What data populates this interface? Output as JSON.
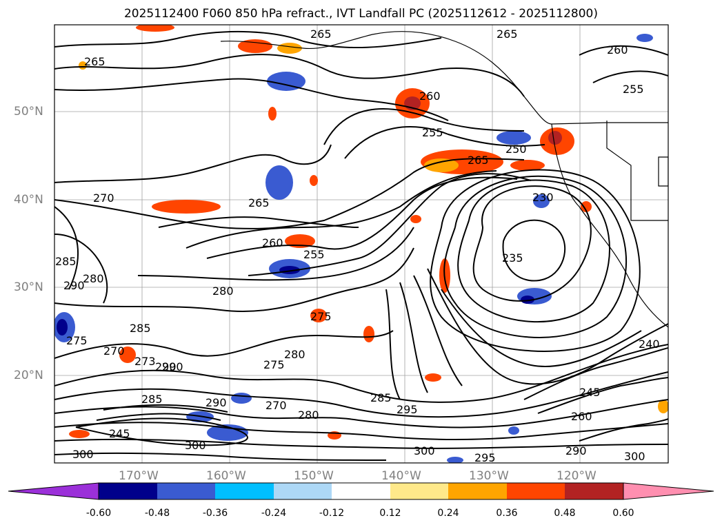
{
  "title": "2025112400 F060 850 hPa refract., IVT Landfall PC (2025112612 - 2025112800)",
  "latitude_labels": [
    "50°N",
    "40°N",
    "30°N",
    "20°N"
  ],
  "longitude_labels": [
    "170°W",
    "160°W",
    "150°W",
    "140°W",
    "130°W",
    "120°W"
  ],
  "colorbar": {
    "ticks": [
      "-0.60",
      "-0.48",
      "-0.36",
      "-0.24",
      "-0.12",
      "0.12",
      "0.24",
      "0.36",
      "0.48",
      "0.60"
    ],
    "colors": [
      "#9b30d9",
      "#00008b",
      "#3a5bd1",
      "#00bfff",
      "#add8f6",
      "#ffffff",
      "#ffe98a",
      "#ffa500",
      "#ff4500",
      "#b22222",
      "#ff8fb0"
    ]
  },
  "contour_labels": [
    "265",
    "265",
    "265",
    "260",
    "260",
    "255",
    "255",
    "250",
    "265",
    "270",
    "265",
    "260",
    "255",
    "235",
    "230",
    "280",
    "285",
    "290",
    "280",
    "285",
    "275",
    "275",
    "270",
    "273",
    "290",
    "280",
    "275",
    "245",
    "240",
    "290",
    "285",
    "290",
    "280",
    "270",
    "285",
    "295",
    "300",
    "300",
    "295",
    "300",
    "290",
    "300",
    "260",
    "245"
  ]
}
